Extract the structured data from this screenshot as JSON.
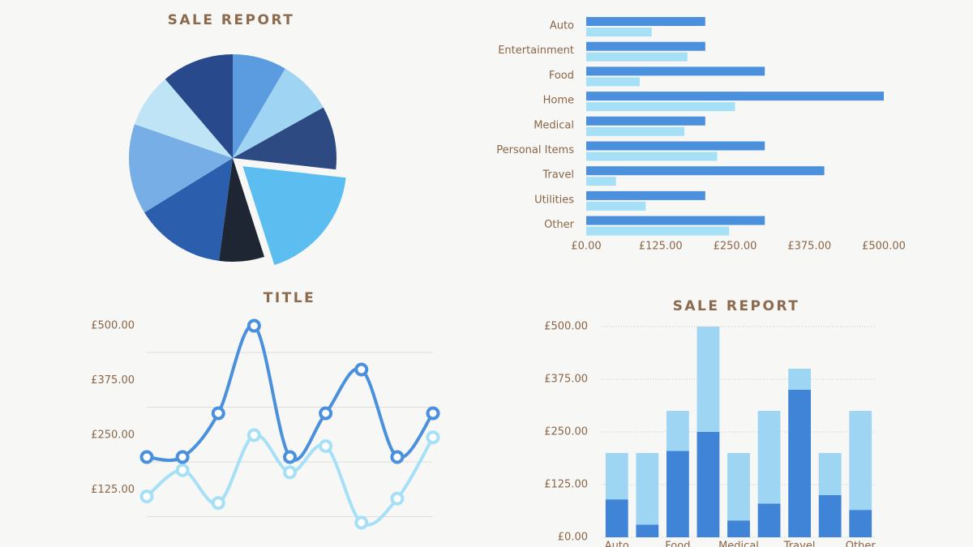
{
  "chart_data": [
    {
      "type": "pie",
      "title": "SALE REPORT",
      "values": [
        30,
        30,
        35,
        65,
        25,
        50,
        50,
        30,
        40
      ],
      "colors": [
        "#5b9be0",
        "#9fd4f3",
        "#2d4a82",
        "#5cbdf0",
        "#1e2633",
        "#2c5eae",
        "#77aee6",
        "#bfe4f6",
        "#284a8c"
      ],
      "explode": 3
    },
    {
      "type": "bar",
      "horizontal": true,
      "categories": [
        "Auto",
        "Entertainment",
        "Food",
        "Home",
        "Medical",
        "Personal Items",
        "Travel",
        "Utilities",
        "Other"
      ],
      "series": [
        {
          "color": "#4a90dc",
          "values": [
            200,
            200,
            300,
            500,
            200,
            300,
            400,
            200,
            300
          ]
        },
        {
          "color": "#a6e0f7",
          "values": [
            110,
            170,
            90,
            250,
            165,
            220,
            50,
            100,
            240
          ]
        }
      ],
      "xlim": [
        0,
        500
      ],
      "xticks": [
        {
          "value": 0,
          "label": "£0.00"
        },
        {
          "value": 125,
          "label": "£125.00"
        },
        {
          "value": 250,
          "label": "£250.00"
        },
        {
          "value": 375,
          "label": "£375.00"
        },
        {
          "value": 500,
          "label": "£500.00"
        }
      ]
    },
    {
      "type": "line",
      "title": "TITLE",
      "series": [
        {
          "color": "#4a90dc",
          "values": [
            200,
            200,
            300,
            500,
            200,
            300,
            400,
            200,
            300
          ]
        },
        {
          "color": "#a6e0f7",
          "values": [
            110,
            170,
            95,
            250,
            165,
            225,
            50,
            105,
            245
          ]
        }
      ],
      "ylim": [
        0,
        500
      ],
      "yticks": [
        {
          "value": 125,
          "label": "£125.00"
        },
        {
          "value": 250,
          "label": "£250.00"
        },
        {
          "value": 375,
          "label": "£375.00"
        },
        {
          "value": 500,
          "label": "£500.00"
        }
      ],
      "grid": true
    },
    {
      "type": "bar",
      "stacked": true,
      "title": "SALE REPORT",
      "categories": [
        "Auto",
        null,
        "Food",
        null,
        "Medical",
        null,
        "Travel",
        null,
        "Other"
      ],
      "series": [
        {
          "color": "#3f84d6",
          "values": [
            90,
            30,
            205,
            250,
            40,
            80,
            350,
            100,
            65
          ]
        },
        {
          "color": "#9dd5f3",
          "values": [
            110,
            170,
            95,
            250,
            160,
            220,
            50,
            100,
            235
          ]
        }
      ],
      "ylim": [
        0,
        500
      ],
      "yticks": [
        {
          "value": 0,
          "label": "£0.00"
        },
        {
          "value": 125,
          "label": "£125.00"
        },
        {
          "value": 250,
          "label": "£250.00"
        },
        {
          "value": 375,
          "label": "£375.00"
        },
        {
          "value": 500,
          "label": "£500.00"
        }
      ],
      "grid": true
    }
  ]
}
